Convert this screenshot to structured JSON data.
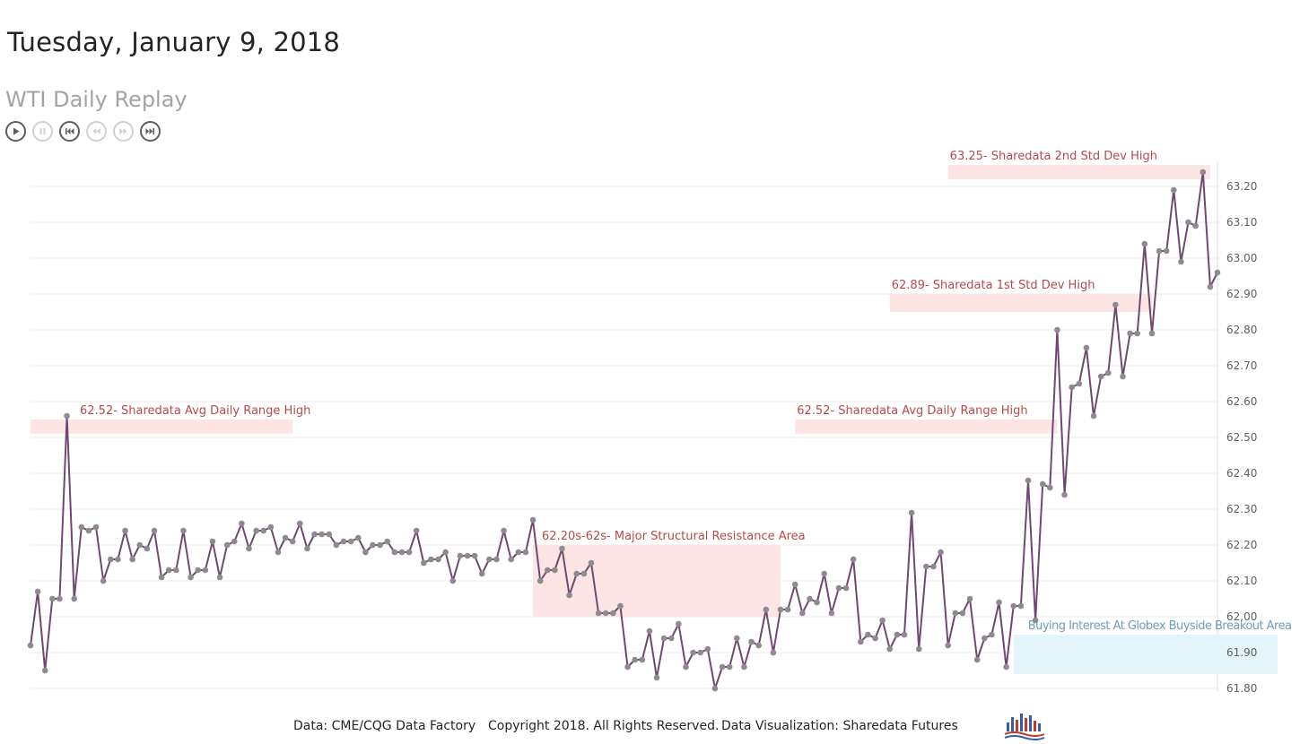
{
  "header": {
    "date": "Tuesday, January 9, 2018",
    "subtitle": "WTI Daily Replay"
  },
  "controls": [
    {
      "name": "play-icon",
      "enabled": true
    },
    {
      "name": "pause-icon",
      "enabled": false
    },
    {
      "name": "skip-to-start-icon",
      "enabled": true
    },
    {
      "name": "step-back-icon",
      "enabled": false
    },
    {
      "name": "step-forward-icon",
      "enabled": false
    },
    {
      "name": "skip-to-end-icon",
      "enabled": true
    }
  ],
  "colors": {
    "line": "#6f4a6f",
    "marker": "#8f8a8f",
    "resistance_band": "#fde2e2",
    "annotation_text": "#b84a4a",
    "buy_band": "#e3f3fb",
    "buy_text": "#6f9db5",
    "grid": "#ececec",
    "axis_text": "#605e5c"
  },
  "chart_data": {
    "type": "line",
    "title": "WTI Daily Replay",
    "xlabel": "",
    "ylabel": "",
    "ylim": [
      61.8,
      63.25
    ],
    "yticks": [
      "61.80",
      "61.90",
      "62.00",
      "62.10",
      "62.20",
      "62.30",
      "62.40",
      "62.50",
      "62.60",
      "62.70",
      "62.80",
      "62.90",
      "63.00",
      "63.10",
      "63.20"
    ],
    "grid": true,
    "series": [
      {
        "name": "WTI",
        "values": [
          61.92,
          62.07,
          61.85,
          62.05,
          62.05,
          62.56,
          62.05,
          62.25,
          62.24,
          62.25,
          62.1,
          62.16,
          62.16,
          62.24,
          62.16,
          62.2,
          62.19,
          62.24,
          62.11,
          62.13,
          62.13,
          62.24,
          62.11,
          62.13,
          62.13,
          62.21,
          62.11,
          62.2,
          62.21,
          62.26,
          62.19,
          62.24,
          62.24,
          62.25,
          62.18,
          62.22,
          62.21,
          62.26,
          62.19,
          62.23,
          62.23,
          62.23,
          62.2,
          62.21,
          62.21,
          62.22,
          62.18,
          62.2,
          62.2,
          62.21,
          62.18,
          62.18,
          62.18,
          62.24,
          62.15,
          62.16,
          62.16,
          62.18,
          62.1,
          62.17,
          62.17,
          62.17,
          62.12,
          62.16,
          62.16,
          62.24,
          62.16,
          62.18,
          62.18,
          62.27,
          62.1,
          62.13,
          62.13,
          62.19,
          62.06,
          62.12,
          62.12,
          62.15,
          62.01,
          62.01,
          62.01,
          62.03,
          61.86,
          61.88,
          61.88,
          61.96,
          61.83,
          61.94,
          61.94,
          61.98,
          61.86,
          61.9,
          61.9,
          61.91,
          61.8,
          61.86,
          61.86,
          61.94,
          61.86,
          61.93,
          61.92,
          62.02,
          61.9,
          62.02,
          62.02,
          62.09,
          62.01,
          62.05,
          62.04,
          62.12,
          62.01,
          62.08,
          62.08,
          62.16,
          61.93,
          61.95,
          61.94,
          61.99,
          61.91,
          61.95,
          61.95,
          62.29,
          61.91,
          62.14,
          62.14,
          62.18,
          61.92,
          62.01,
          62.01,
          62.05,
          61.88,
          61.94,
          61.95,
          62.04,
          61.86,
          62.03,
          62.03,
          62.38,
          61.99,
          62.37,
          62.36,
          62.8,
          62.34,
          62.64,
          62.65,
          62.75,
          62.56,
          62.67,
          62.68,
          62.87,
          62.67,
          62.79,
          62.79,
          63.04,
          62.79,
          63.02,
          63.02,
          63.19,
          62.99,
          63.1,
          63.09,
          63.24,
          62.92,
          62.96
        ]
      }
    ],
    "annotations": [
      {
        "label": "62.52- Sharedata Avg Daily Range High",
        "ymin": 62.51,
        "ymax": 62.55,
        "i_start": 0,
        "i_end": 36,
        "kind": "resistance",
        "label_pos": "above-right"
      },
      {
        "label": "62.52- Sharedata Avg Daily Range High",
        "ymin": 62.51,
        "ymax": 62.55,
        "i_start": 105,
        "i_end": 141,
        "kind": "resistance",
        "label_pos": "above"
      },
      {
        "label": "62.20s-62s- Major Structural Resistance Area",
        "ymin": 62.0,
        "ymax": 62.2,
        "i_start": 69,
        "i_end": 103,
        "kind": "resistance",
        "label_pos": "above-right"
      },
      {
        "label": "62.89- Sharedata 1st Std Dev High",
        "ymin": 62.85,
        "ymax": 62.9,
        "i_start": 118,
        "i_end": 154,
        "kind": "resistance",
        "label_pos": "above"
      },
      {
        "label": "63.25- Sharedata 2nd Std Dev High",
        "ymin": 63.22,
        "ymax": 63.26,
        "i_start": 126,
        "i_end": 162,
        "kind": "resistance",
        "label_pos": "above"
      },
      {
        "label": "Buying Interest At Globex Buyside Breakout Area",
        "ymin": 61.84,
        "ymax": 61.95,
        "i_start": 135,
        "i_end": 174,
        "kind": "buy",
        "label_pos": "above-right"
      }
    ]
  },
  "footer": {
    "source": "Data: CME/CQG Data Factory",
    "copyright": "Copyright 2018. All Rights Reserved.",
    "credit": "Data Visualization: Sharedata Futures"
  }
}
